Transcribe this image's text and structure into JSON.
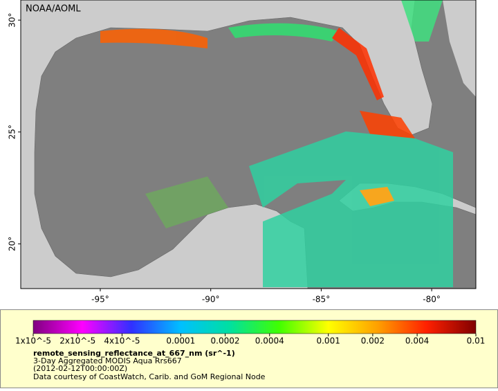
{
  "map": {
    "attribution": "NOAA/AOML",
    "lon_range": [
      -98.6,
      -78.0
    ],
    "lat_range": [
      18.0,
      30.9
    ],
    "lon_ticks": [
      {
        "value": -95,
        "label": "-95°"
      },
      {
        "value": -90,
        "label": "-90°"
      },
      {
        "value": -85,
        "label": "-85°"
      },
      {
        "value": -80,
        "label": "-80°"
      }
    ],
    "lat_ticks": [
      {
        "value": 20,
        "label": "20°"
      },
      {
        "value": 25,
        "label": "25°"
      },
      {
        "value": 30,
        "label": "30°"
      }
    ]
  },
  "colorbar": {
    "log_scale": true,
    "range": [
      1e-05,
      0.01
    ],
    "palette": [
      "#800080",
      "#ff00ff",
      "#3030ff",
      "#00c0ff",
      "#00e0a0",
      "#40ff00",
      "#ffff00",
      "#ffa000",
      "#ff2000",
      "#800000"
    ],
    "ticks": [
      {
        "value": 1e-05,
        "label": "1x10^-5"
      },
      {
        "value": 2e-05,
        "label": "2x10^-5"
      },
      {
        "value": 4e-05,
        "label": "4x10^-5"
      },
      0.0001,
      0.0002,
      0.0004,
      0.001,
      0.002,
      0.004,
      0.01
    ]
  },
  "legend": {
    "variable": "remote_sensing_reflectance_at_667_nm (sr^-1)",
    "lines": [
      "3-Day Aggregated MODIS Aqua Rrs667",
      "(2012-02-12T00:00:00Z)",
      "Data courtesy of CoastWatch, Carib. and GoM Regional Node"
    ]
  }
}
